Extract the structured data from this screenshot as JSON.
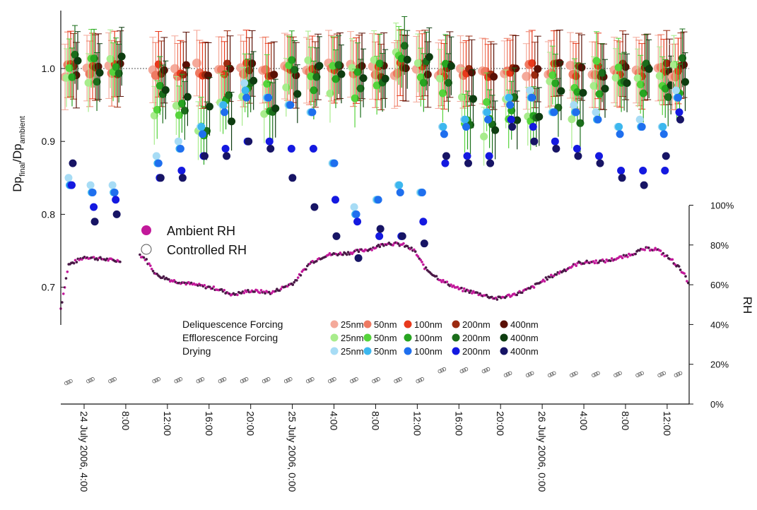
{
  "chart_data": {
    "type": "scatter",
    "ylabel_left": {
      "main": "Dp",
      "sub1": "final",
      "mid": "/Dp",
      "sub2": "ambient"
    },
    "ylabel_right": "RH",
    "ylim_left": [
      0.65,
      1.08
    ],
    "ylim_right": [
      0,
      100
    ],
    "xlim_hours": [
      0.8,
      58.0
    ],
    "left_ticks": [
      "0.7",
      "0.8",
      "0.9",
      "1.0"
    ],
    "left_tick_values": [
      0.7,
      0.8,
      0.9,
      1.0
    ],
    "right_ticks": [
      "0%",
      "20%",
      "40%",
      "60%",
      "80%",
      "100%"
    ],
    "right_tick_values": [
      0,
      20,
      40,
      60,
      80,
      100
    ],
    "x_ticks": [
      {
        "label": "24 July 2006, 4:00",
        "hour": 4
      },
      {
        "label": "8:00",
        "hour": 8
      },
      {
        "label": "12:00",
        "hour": 12
      },
      {
        "label": "16:00",
        "hour": 16
      },
      {
        "label": "20:00",
        "hour": 20
      },
      {
        "label": "25 July 2006, 0:00",
        "hour": 24
      },
      {
        "label": "4:00",
        "hour": 28
      },
      {
        "label": "8:00",
        "hour": 32
      },
      {
        "label": "12:00",
        "hour": 36
      },
      {
        "label": "16:00",
        "hour": 40
      },
      {
        "label": "20:00",
        "hour": 44
      },
      {
        "label": "26 July 2006, 0:00",
        "hour": 48
      },
      {
        "label": "4:00",
        "hour": 52
      },
      {
        "label": "8:00",
        "hour": 56
      },
      {
        "label": "12:00",
        "hour": 60
      }
    ],
    "reference_line": 1.0,
    "rh_legend": {
      "ambient_label": "Ambient RH",
      "controlled_label": "Controlled RH"
    },
    "legend": {
      "groups": [
        {
          "name": "Deliquescence Forcing",
          "sizes": [
            "25nm",
            "50nm",
            "100nm",
            "200nm",
            "400nm"
          ],
          "colors": [
            "#f4a99a",
            "#ee7a62",
            "#e8391c",
            "#9b2a10",
            "#5a1005"
          ]
        },
        {
          "name": "Efflorescence Forcing",
          "sizes": [
            "25nm",
            "50nm",
            "100nm",
            "200nm",
            "400nm"
          ],
          "colors": [
            "#a8ec8c",
            "#56d43c",
            "#27a521",
            "#1b6e1b",
            "#0e3d10"
          ]
        },
        {
          "name": "Drying",
          "sizes": [
            "25nm",
            "50nm",
            "100nm",
            "200nm",
            "400nm"
          ],
          "colors": [
            "#a7dcf5",
            "#3cb7ee",
            "#1f6fee",
            "#1419e0",
            "#171465"
          ]
        }
      ]
    },
    "measurement_hours": [
      1.7,
      3.7,
      5.7,
      9.7,
      11.7,
      13.7,
      15.7,
      17.7,
      19.7,
      21.7,
      23.7,
      25.7,
      27.7,
      29.7,
      31.7,
      33.7,
      35.7,
      37.7,
      39.7,
      41.7,
      43.7,
      45.7,
      47.7,
      49.7,
      51.7,
      53.7,
      55.7,
      57.0
    ],
    "deliquescence_mean": 0.998,
    "efflorescence_values": [
      1.0,
      1.0,
      1.0,
      0.96,
      0.96,
      0.93,
      0.94,
      0.97,
      0.96,
      0.99,
      0.99,
      0.99,
      0.98,
      1.0,
      1.01,
      1.0,
      0.99,
      0.94,
      0.93,
      0.95,
      0.95,
      0.97,
      0.95,
      0.99,
      0.99,
      0.99,
      0.98,
      0.99
    ],
    "drying": {
      "25nm": [
        0.85,
        0.84,
        0.84,
        0.88,
        0.9,
        0.92,
        0.95,
        0.98,
        0.96,
        0.95,
        0.94,
        0.87,
        0.81,
        0.82,
        0.84,
        0.83,
        0.92,
        0.93,
        0.94,
        0.96,
        0.97,
        0.94,
        0.95,
        0.94,
        0.92,
        0.93,
        0.92,
        0.97
      ],
      "50nm": [
        0.84,
        0.83,
        0.83,
        0.87,
        0.89,
        0.92,
        0.95,
        0.97,
        0.96,
        0.95,
        0.94,
        0.87,
        0.8,
        0.82,
        0.84,
        0.83,
        0.92,
        0.93,
        0.94,
        0.96,
        0.96,
        0.94,
        0.94,
        0.93,
        0.92,
        0.92,
        0.92,
        0.96
      ],
      "100nm": [
        0.84,
        0.83,
        0.83,
        0.87,
        0.89,
        0.91,
        0.94,
        0.96,
        0.96,
        0.95,
        0.94,
        0.87,
        0.8,
        0.82,
        0.83,
        0.83,
        0.91,
        0.92,
        0.93,
        0.95,
        0.96,
        0.94,
        0.94,
        0.93,
        0.91,
        0.92,
        0.91,
        0.96
      ],
      "200nm": [
        0.84,
        0.81,
        0.82,
        0.85,
        0.86,
        0.88,
        0.89,
        0.9,
        0.9,
        0.89,
        0.89,
        0.82,
        0.79,
        0.77,
        0.77,
        0.79,
        0.87,
        0.88,
        0.88,
        0.93,
        0.92,
        0.9,
        0.89,
        0.88,
        0.86,
        0.86,
        0.86,
        0.94
      ],
      "400nm": [
        0.87,
        0.79,
        0.8,
        0.85,
        0.85,
        0.88,
        0.88,
        0.9,
        0.89,
        0.85,
        0.81,
        0.77,
        0.74,
        0.78,
        0.77,
        0.76,
        0.88,
        0.87,
        0.87,
        0.92,
        0.9,
        0.89,
        0.88,
        0.87,
        0.85,
        0.84,
        0.88,
        0.93
      ]
    },
    "ambient_rh": [
      [
        0.8,
        48
      ],
      [
        1.5,
        70
      ],
      [
        3.0,
        74
      ],
      [
        4.5,
        73
      ],
      [
        6.0,
        72
      ],
      [
        8.0,
        75
      ],
      [
        8.5,
        73
      ],
      [
        9.5,
        65
      ],
      [
        11.0,
        62
      ],
      [
        13.0,
        60
      ],
      [
        15.0,
        58
      ],
      [
        16.5,
        55
      ],
      [
        18.0,
        57
      ],
      [
        20.0,
        56
      ],
      [
        22.0,
        61
      ],
      [
        23.5,
        71
      ],
      [
        25.0,
        75
      ],
      [
        27.0,
        76
      ],
      [
        29.0,
        78
      ],
      [
        30.5,
        81
      ],
      [
        32.0,
        80
      ],
      [
        33.0,
        77
      ],
      [
        34.0,
        68
      ],
      [
        35.5,
        62
      ],
      [
        37.0,
        58
      ],
      [
        38.5,
        56
      ],
      [
        40.5,
        53
      ],
      [
        42.0,
        55
      ],
      [
        43.5,
        58
      ],
      [
        45.0,
        63
      ],
      [
        46.5,
        67
      ],
      [
        48.0,
        71
      ],
      [
        50.5,
        72
      ],
      [
        52.0,
        74
      ],
      [
        54.0,
        78
      ],
      [
        55.0,
        78
      ],
      [
        56.5,
        72
      ],
      [
        57.5,
        66
      ],
      [
        58.0,
        59
      ]
    ],
    "controlled_rh": [
      [
        1.5,
        11
      ],
      [
        3.5,
        12
      ],
      [
        5.5,
        12
      ],
      [
        9.5,
        12
      ],
      [
        11.5,
        12
      ],
      [
        13.5,
        12
      ],
      [
        15.5,
        12
      ],
      [
        17.5,
        12
      ],
      [
        19.5,
        12
      ],
      [
        21.5,
        12
      ],
      [
        23.5,
        12
      ],
      [
        25.5,
        12
      ],
      [
        27.5,
        12
      ],
      [
        29.5,
        12
      ],
      [
        31.5,
        12
      ],
      [
        33.5,
        12
      ],
      [
        35.5,
        17
      ],
      [
        37.5,
        17
      ],
      [
        39.5,
        17
      ],
      [
        41.5,
        15
      ],
      [
        43.5,
        15
      ],
      [
        45.5,
        15
      ],
      [
        47.5,
        15
      ],
      [
        49.5,
        15
      ],
      [
        51.5,
        15
      ],
      [
        53.5,
        15
      ],
      [
        55.5,
        15
      ],
      [
        57.0,
        15
      ]
    ]
  }
}
